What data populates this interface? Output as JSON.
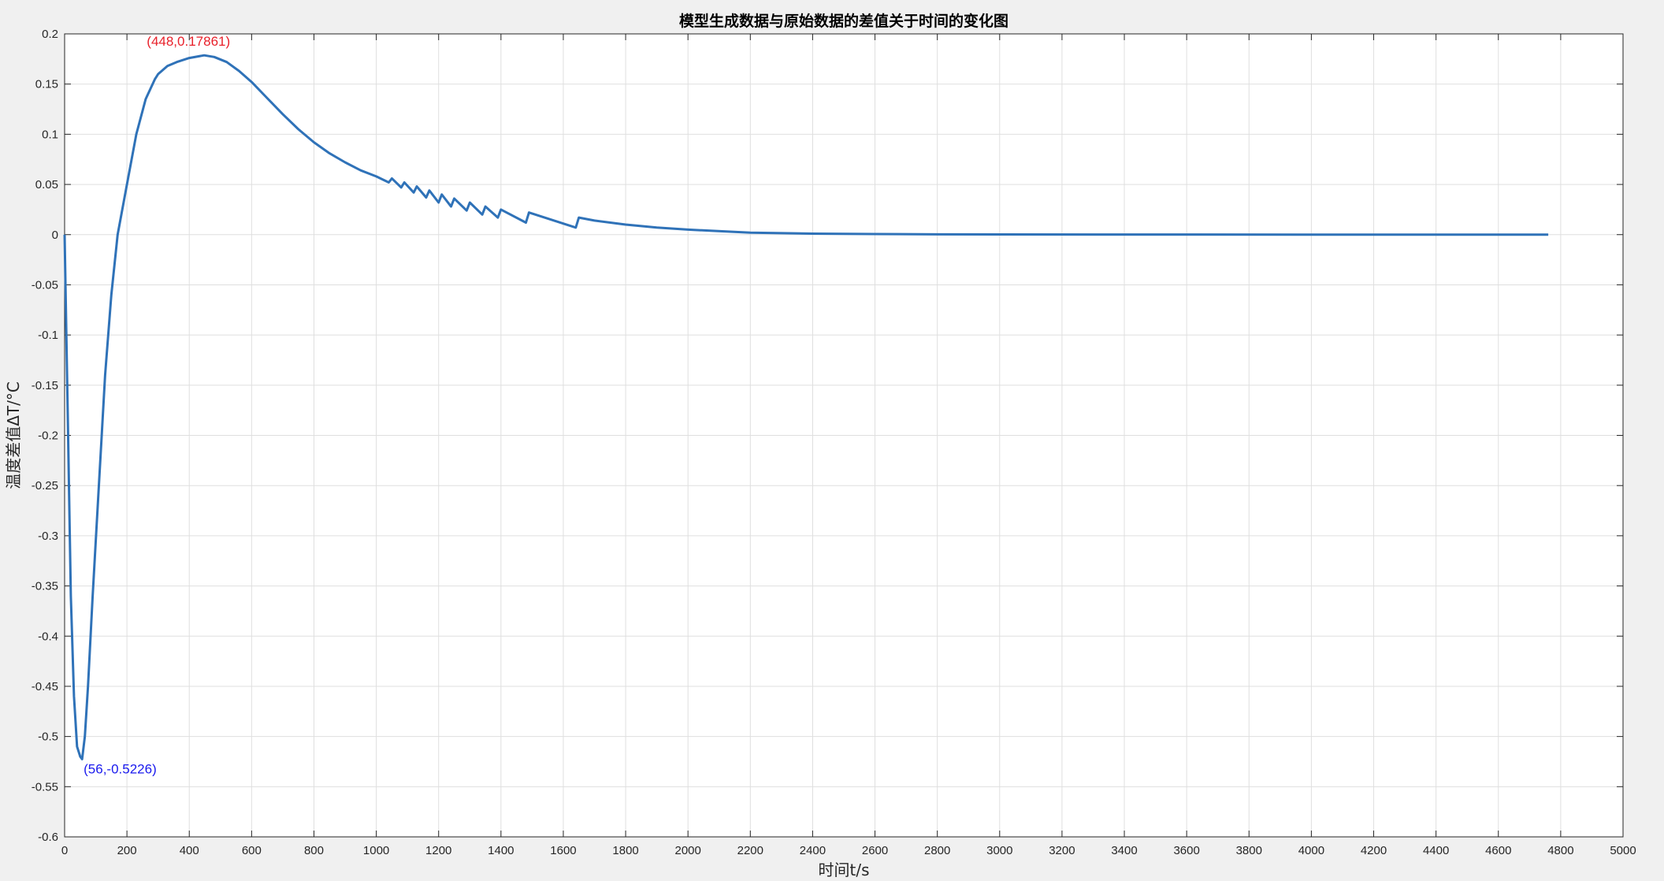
{
  "chart_data": {
    "type": "line",
    "title": "模型生成数据与原始数据的差值关于时间的变化图",
    "xlabel": "时间t/s",
    "ylabel": "温度差值ΔT/°C",
    "xlim": [
      0,
      5000
    ],
    "ylim": [
      -0.6,
      0.2
    ],
    "xticks": [
      0,
      200,
      400,
      600,
      800,
      1000,
      1200,
      1400,
      1600,
      1800,
      2000,
      2200,
      2400,
      2600,
      2800,
      3000,
      3200,
      3400,
      3600,
      3800,
      4000,
      4200,
      4400,
      4600,
      4800,
      5000
    ],
    "yticks": [
      0.2,
      0.15,
      0.1,
      0.05,
      0,
      -0.05,
      -0.1,
      -0.15,
      -0.2,
      -0.25,
      -0.3,
      -0.35,
      -0.4,
      -0.45,
      -0.5,
      -0.55,
      -0.6
    ],
    "grid": true,
    "series_color": "#2f72b8",
    "series": [
      {
        "x": [
          0,
          10,
          20,
          30,
          40,
          50,
          56,
          65,
          75,
          90,
          110,
          130,
          150,
          170,
          200,
          230,
          260,
          290,
          300,
          330,
          360,
          400,
          448,
          480,
          520,
          560,
          600,
          650,
          700,
          750,
          800,
          850,
          900,
          950,
          1000,
          1040,
          1050,
          1080,
          1090,
          1120,
          1130,
          1160,
          1170,
          1200,
          1210,
          1240,
          1250,
          1290,
          1300,
          1340,
          1350,
          1390,
          1400,
          1480,
          1490,
          1640,
          1650,
          1700,
          1800,
          1900,
          2000,
          2200,
          2400,
          2600,
          2800,
          3000,
          3500,
          4000,
          4500,
          4760
        ],
        "y": [
          0,
          -0.18,
          -0.36,
          -0.46,
          -0.51,
          -0.52,
          -0.5226,
          -0.5,
          -0.45,
          -0.36,
          -0.25,
          -0.14,
          -0.06,
          0.0,
          0.05,
          0.1,
          0.135,
          0.155,
          0.16,
          0.168,
          0.172,
          0.176,
          0.17861,
          0.177,
          0.172,
          0.163,
          0.152,
          0.136,
          0.12,
          0.105,
          0.092,
          0.081,
          0.072,
          0.064,
          0.058,
          0.052,
          0.056,
          0.047,
          0.052,
          0.042,
          0.048,
          0.037,
          0.044,
          0.032,
          0.04,
          0.028,
          0.036,
          0.024,
          0.032,
          0.02,
          0.028,
          0.017,
          0.025,
          0.012,
          0.022,
          0.007,
          0.017,
          0.014,
          0.01,
          0.007,
          0.005,
          0.002,
          0.001,
          0.0006,
          0.0003,
          0.0002,
          0.0001,
          5e-05,
          2e-05,
          1e-05
        ]
      }
    ],
    "annotations": [
      {
        "x": 448,
        "y": 0.17861,
        "text": "(448,0.17861)",
        "color": "#e8202a"
      },
      {
        "x": 56,
        "y": -0.5226,
        "text": "(56,-0.5226)",
        "color": "#1a1aee"
      }
    ]
  }
}
